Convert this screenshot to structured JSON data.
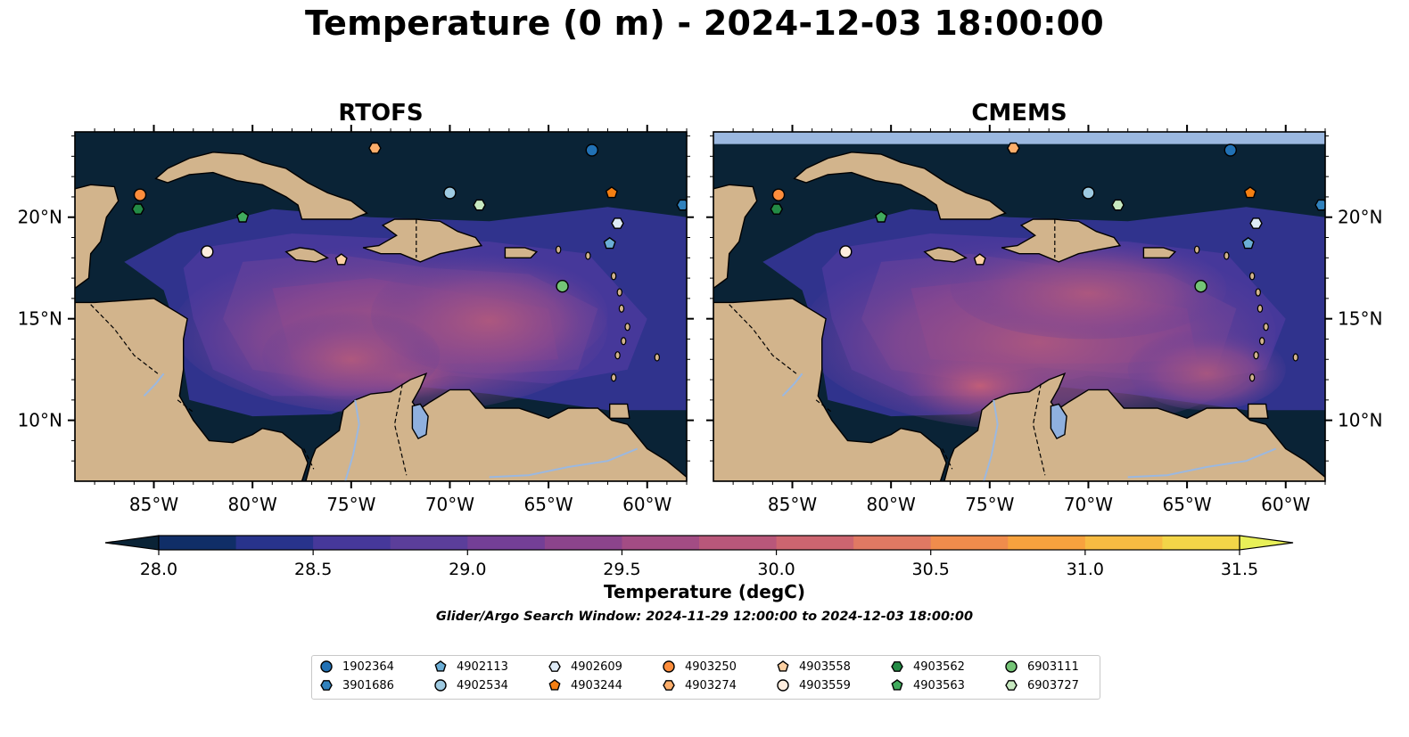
{
  "title": "Temperature (0 m) - 2024-12-03 18:00:00",
  "panels": [
    {
      "title": "RTOFS"
    },
    {
      "title": "CMEMS"
    }
  ],
  "axes": {
    "lon_ticks": [
      "85°W",
      "80°W",
      "75°W",
      "70°W",
      "65°W",
      "60°W"
    ],
    "lat_ticks": [
      "20°N",
      "15°N",
      "10°N"
    ],
    "lon_range": [
      -89,
      -58
    ],
    "lat_range": [
      7,
      24.2
    ]
  },
  "colorbar": {
    "label": "Temperature (degC)",
    "ticks": [
      "28.0",
      "28.5",
      "29.0",
      "29.5",
      "30.0",
      "30.5",
      "31.0",
      "31.5"
    ],
    "range": [
      28.0,
      31.5
    ],
    "colors": [
      "#0a2336",
      "#102e67",
      "#28338c",
      "#46389a",
      "#5b3e9a",
      "#743f96",
      "#8c448c",
      "#a34c84",
      "#b9577a",
      "#cd6570",
      "#e07963",
      "#f08c4c",
      "#f7a23e",
      "#f7bb42",
      "#f3d548",
      "#e8f058"
    ]
  },
  "search_window": "Glider/Argo Search Window: 2024-11-29 12:00:00 to 2024-12-03 18:00:00",
  "floats": [
    {
      "id": "1902364",
      "marker": "circle",
      "color": "#2171b5",
      "lon": -62.8,
      "lat": 23.3
    },
    {
      "id": "3901686",
      "marker": "hexagon",
      "color": "#3182bd",
      "lon": -58.2,
      "lat": 20.6
    },
    {
      "id": "4902113",
      "marker": "pentagon",
      "color": "#6baed6",
      "lon": -61.9,
      "lat": 18.7
    },
    {
      "id": "4902534",
      "marker": "circle",
      "color": "#9ecae1",
      "lon": -70.0,
      "lat": 21.2
    },
    {
      "id": "4902609",
      "marker": "hexagon",
      "color": "#deebf7",
      "lon": -61.5,
      "lat": 19.7
    },
    {
      "id": "4903244",
      "marker": "pentagon",
      "color": "#f57f12",
      "lon": -61.8,
      "lat": 21.2
    },
    {
      "id": "4903250",
      "marker": "circle",
      "color": "#fd8d3c",
      "lon": -85.7,
      "lat": 21.1
    },
    {
      "id": "4903274",
      "marker": "hexagon",
      "color": "#fdae6b",
      "lon": -73.8,
      "lat": 23.4
    },
    {
      "id": "4903558",
      "marker": "pentagon",
      "color": "#fdd0a2",
      "lon": -75.5,
      "lat": 17.9
    },
    {
      "id": "4903559",
      "marker": "circle",
      "color": "#feedde",
      "lon": -82.3,
      "lat": 18.3
    },
    {
      "id": "4903562",
      "marker": "hexagon",
      "color": "#238b45",
      "lon": -85.8,
      "lat": 20.4
    },
    {
      "id": "4903563",
      "marker": "pentagon",
      "color": "#41ab5d",
      "lon": -80.5,
      "lat": 20.0
    },
    {
      "id": "6903111",
      "marker": "circle",
      "color": "#74c476",
      "lon": -64.3,
      "lat": 16.6
    },
    {
      "id": "6903727",
      "marker": "hexagon",
      "color": "#c7e9c0",
      "lon": -68.5,
      "lat": 20.6
    }
  ]
}
